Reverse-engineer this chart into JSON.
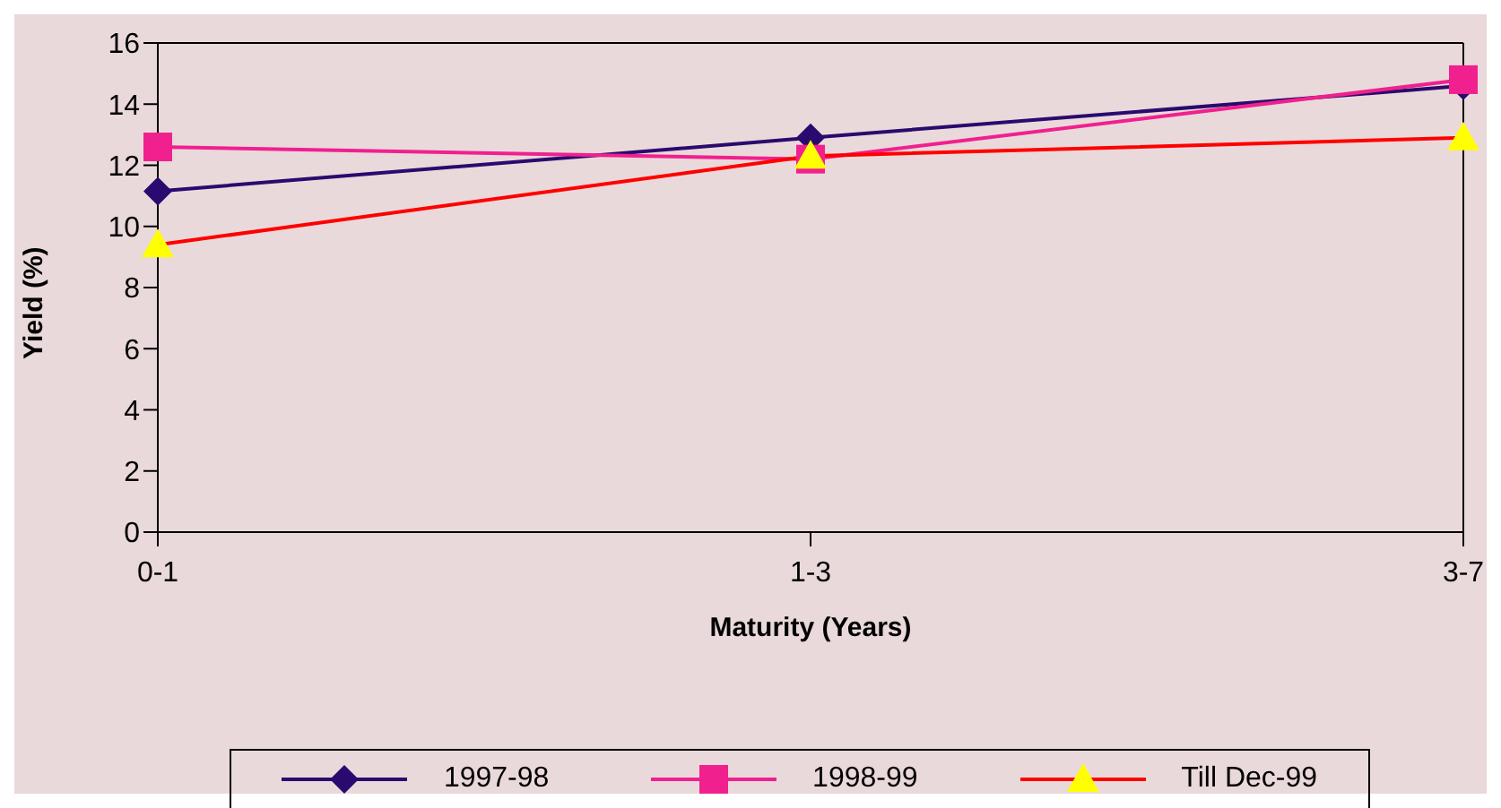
{
  "chart_data": {
    "type": "line",
    "xlabel": "Maturity (Years)",
    "ylabel": "Yield (%)",
    "categories": [
      "0-1",
      "1-3",
      "3-7"
    ],
    "series": [
      {
        "name": "1997-98",
        "color": "#2a0a6e",
        "marker": "diamond",
        "values": [
          11.15,
          12.9,
          14.6
        ]
      },
      {
        "name": "1998-99",
        "color": "#f0208f",
        "marker": "square",
        "values": [
          12.6,
          12.2,
          14.8
        ]
      },
      {
        "name": "Till Dec-99",
        "color": "#ff0000",
        "marker": "triangle",
        "values": [
          9.4,
          12.3,
          12.9
        ]
      }
    ],
    "ylim": [
      0,
      16
    ],
    "yticks": [
      0,
      2,
      4,
      6,
      8,
      10,
      12,
      14,
      16
    ],
    "grid": false,
    "legend": "bottom"
  }
}
